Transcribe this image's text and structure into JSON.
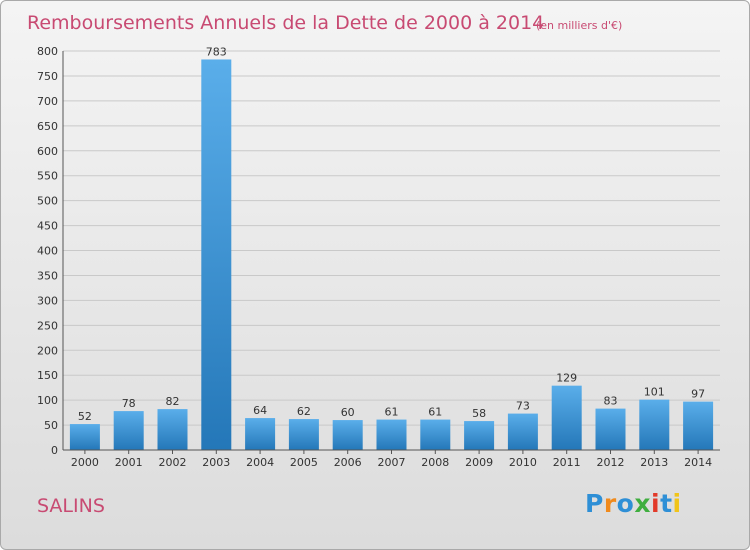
{
  "commune": "SALINS",
  "logo": {
    "text": "Proxiti",
    "letters": [
      {
        "char": "P",
        "color": "#2e8fd6"
      },
      {
        "char": "r",
        "color": "#f08a1c"
      },
      {
        "char": "o",
        "color": "#2e8fd6"
      },
      {
        "char": "x",
        "color": "#3fae3f"
      },
      {
        "char": "i",
        "color": "#e23a2a"
      },
      {
        "char": "t",
        "color": "#2e8fd6"
      },
      {
        "char": "i",
        "color": "#f0c419"
      }
    ]
  },
  "colors": {
    "title": "#c84a72",
    "bar_top": "#5aaeea",
    "bar_bottom": "#2477b8",
    "grid": "#c9c9c9"
  },
  "chart_data": {
    "type": "bar",
    "title": "Remboursements Annuels de la Dette de 2000 à 2014",
    "subtitle": "(en milliers d'€)",
    "categories": [
      "2000",
      "2001",
      "2002",
      "2003",
      "2004",
      "2005",
      "2006",
      "2007",
      "2008",
      "2009",
      "2010",
      "2011",
      "2012",
      "2013",
      "2014"
    ],
    "values": [
      52,
      78,
      82,
      783,
      64,
      62,
      60,
      61,
      61,
      58,
      73,
      129,
      83,
      101,
      97
    ],
    "ylim": [
      0,
      800
    ],
    "yticks": [
      0,
      50,
      100,
      150,
      200,
      250,
      300,
      350,
      400,
      450,
      500,
      550,
      600,
      650,
      700,
      750,
      800
    ],
    "grid": true,
    "xlabel": "",
    "ylabel": ""
  }
}
